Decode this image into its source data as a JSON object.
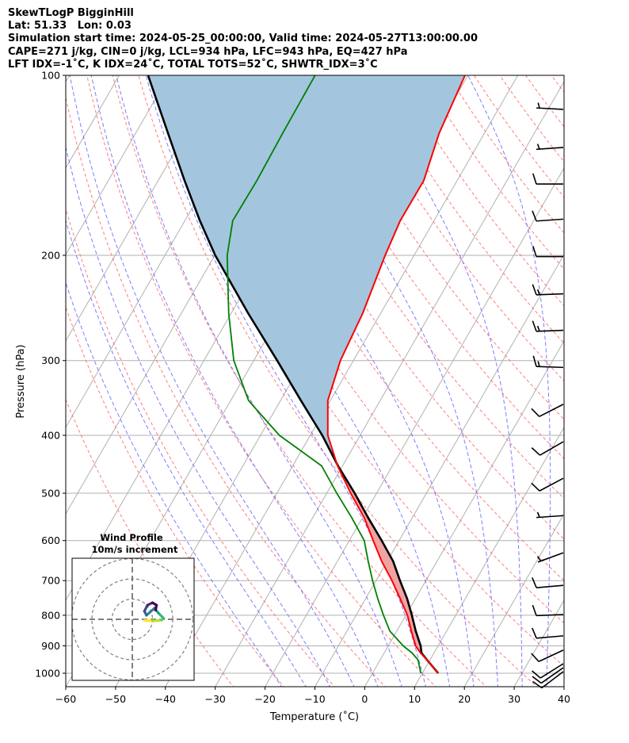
{
  "header": {
    "line1": "SkewTLogP BigginHill",
    "line2": "Lat: 51.33   Lon: 0.03",
    "line3": "Simulation start time: 2024-05-25_00:00:00, Valid time: 2024-05-27T13:00:00.00",
    "line4": "CAPE=271 j/kg, CIN=0 j/kg, LCL=934 hPa, LFC=943 hPa, EQ=427 hPa",
    "line5": "LFT IDX=-1˚C, K IDX=24˚C, TOTAL TOTS=52˚C, SHWTR_IDX=3˚C"
  },
  "chart_data": {
    "type": "skewt",
    "xlabel": "Temperature (˚C)",
    "ylabel": "Pressure (hPa)",
    "xlim": [
      -60,
      40
    ],
    "ylim": [
      1050,
      100
    ],
    "xticks": [
      -60,
      -50,
      -40,
      -30,
      -20,
      -10,
      0,
      10,
      20,
      30,
      40
    ],
    "xtick_labels": [
      "−60",
      "−50",
      "−40",
      "−30",
      "−20",
      "−10",
      "0",
      "10",
      "20",
      "30",
      "40"
    ],
    "yticks": [
      100,
      200,
      300,
      400,
      500,
      600,
      700,
      800,
      900,
      1000
    ],
    "ytick_labels": [
      "100",
      "200",
      "300",
      "400",
      "500",
      "600",
      "700",
      "800",
      "900",
      "1000"
    ],
    "grid": true,
    "colors": {
      "temperature": "#ff0000",
      "dewpoint": "#008000",
      "parcel": "#000000",
      "positive_area": "#f0a3a3",
      "negative_area": "#a3c6de",
      "isotherm": "#b0b0b0",
      "dry_adiabat": "#ff6666",
      "moist_adiabat": "#6666ff"
    },
    "pressure": [
      1000,
      950,
      925,
      900,
      850,
      800,
      750,
      700,
      650,
      600,
      550,
      500,
      450,
      400,
      350,
      300,
      250,
      200,
      175,
      150,
      125,
      100
    ],
    "temperature": [
      13.2,
      9.4,
      7.3,
      5.5,
      2.9,
      0.3,
      -3.1,
      -6.8,
      -11.1,
      -15.2,
      -19.6,
      -25.2,
      -31.0,
      -36.5,
      -40.5,
      -42.6,
      -43.6,
      -45.8,
      -46.8,
      -46.7,
      -49.1,
      -50.6
    ],
    "dewpoint": [
      9.7,
      7.6,
      5.6,
      3.0,
      -1.4,
      -4.5,
      -7.6,
      -10.7,
      -13.8,
      -17.0,
      -22.1,
      -28.0,
      -34.2,
      -46.2,
      -56.4,
      -64.0,
      -70.5,
      -77.5,
      -80.4,
      -80.2,
      -80.5,
      -80.7
    ],
    "parcel": [
      13.2,
      9.4,
      7.5,
      6.5,
      3.8,
      1.2,
      -1.7,
      -5.2,
      -8.8,
      -13.5,
      -18.8,
      -24.4,
      -30.9,
      -37.6,
      -45.9,
      -55.3,
      -66.6,
      -79.9,
      -87.0,
      -94.7,
      -103.5,
      -114.2
    ],
    "wind_barbs": [
      {
        "p": 114,
        "speed": 5,
        "dir": 273
      },
      {
        "p": 132,
        "speed": 5,
        "dir": 266
      },
      {
        "p": 152,
        "speed": 10,
        "dir": 270
      },
      {
        "p": 174,
        "speed": 10,
        "dir": 266
      },
      {
        "p": 201,
        "speed": 10,
        "dir": 270
      },
      {
        "p": 232,
        "speed": 15,
        "dir": 268
      },
      {
        "p": 267,
        "speed": 15,
        "dir": 268
      },
      {
        "p": 308,
        "speed": 15,
        "dir": 272
      },
      {
        "p": 355,
        "speed": 10,
        "dir": 243
      },
      {
        "p": 410,
        "speed": 10,
        "dir": 240
      },
      {
        "p": 472,
        "speed": 10,
        "dir": 242
      },
      {
        "p": 545,
        "speed": 5,
        "dir": 266
      },
      {
        "p": 629,
        "speed": 5,
        "dir": 250
      },
      {
        "p": 713,
        "speed": 10,
        "dir": 265
      },
      {
        "p": 798,
        "speed": 10,
        "dir": 268
      },
      {
        "p": 866,
        "speed": 10,
        "dir": 265
      },
      {
        "p": 915,
        "speed": 10,
        "dir": 245
      },
      {
        "p": 964,
        "speed": 10,
        "dir": 238
      },
      {
        "p": 979,
        "speed": 10,
        "dir": 235
      },
      {
        "p": 994,
        "speed": 10,
        "dir": 233
      }
    ],
    "hodograph": {
      "title": "Wind Profile",
      "subtitle": "10m/s increment",
      "rings_ms": [
        10,
        20,
        30
      ],
      "u": [
        6.0,
        10.0,
        14.5,
        15.5,
        13.0,
        11.0,
        7.0,
        6.0,
        7.5,
        10.0,
        12.0,
        11.5
      ],
      "v": [
        -0.5,
        -0.8,
        -0.4,
        0.5,
        3.0,
        5.5,
        2.0,
        4.0,
        7.0,
        8.2,
        7.0,
        4.5
      ]
    }
  }
}
